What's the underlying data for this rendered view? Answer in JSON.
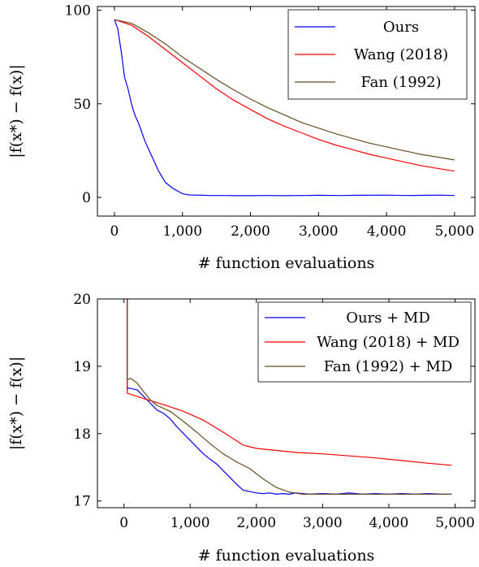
{
  "chart_data": [
    {
      "type": "line",
      "title": "",
      "xlabel": "# function evaluations",
      "ylabel": "|f(x*) − f(x)|",
      "xlim": [
        -250,
        5300
      ],
      "ylim": [
        -10,
        102
      ],
      "xticks": [
        0,
        1000,
        2000,
        3000,
        4000,
        5000
      ],
      "xtick_labels": [
        "0",
        "1,000",
        "2,000",
        "3,000",
        "4,000",
        "5,000"
      ],
      "yticks": [
        0,
        50,
        100
      ],
      "ytick_labels": [
        "0",
        "50",
        "100"
      ],
      "legend": "top-right",
      "series": [
        {
          "name": "Ours",
          "color": "#0000ff",
          "x": [
            0,
            50,
            100,
            150,
            200,
            250,
            300,
            350,
            400,
            450,
            500,
            550,
            600,
            650,
            700,
            750,
            800,
            850,
            900,
            950,
            1000,
            1050,
            1100,
            1200,
            1300,
            1400,
            1600,
            1800,
            2000,
            2200,
            2500,
            2800,
            3000,
            3300,
            3600,
            4000,
            4300,
            4600,
            4800,
            5000
          ],
          "y": [
            95,
            90,
            78,
            64,
            58,
            50,
            44,
            40,
            35,
            30,
            26,
            22,
            18,
            14,
            11,
            8,
            6.5,
            5,
            4,
            3,
            2,
            1.6,
            1.3,
            1.2,
            1.1,
            1.0,
            1.0,
            0.9,
            0.9,
            1.0,
            0.9,
            1.0,
            1.1,
            1.0,
            1.1,
            1.2,
            1.0,
            1.1,
            1.2,
            1.0
          ]
        },
        {
          "name": "Wang (2018)",
          "color": "#ff0000",
          "x": [
            0,
            250,
            500,
            750,
            1000,
            1250,
            1500,
            1750,
            2000,
            2250,
            2500,
            2750,
            3000,
            3250,
            3500,
            3750,
            4000,
            4250,
            4500,
            4750,
            5000
          ],
          "y": [
            95,
            92,
            86,
            79,
            72,
            65,
            58,
            52,
            47,
            42,
            38,
            34.5,
            31,
            28,
            25.5,
            23,
            21,
            19,
            17,
            15.5,
            14
          ]
        },
        {
          "name": "Fan (1992)",
          "color": "#6b4a22",
          "x": [
            0,
            250,
            500,
            750,
            1000,
            1250,
            1500,
            1750,
            2000,
            2250,
            2500,
            2750,
            3000,
            3250,
            3500,
            3750,
            4000,
            4250,
            4500,
            4750,
            5000
          ],
          "y": [
            95,
            93,
            88,
            82,
            75,
            69,
            63,
            57.5,
            52.5,
            48,
            44,
            40,
            37,
            34,
            31.5,
            29,
            27,
            25,
            23,
            21.5,
            20
          ]
        }
      ]
    },
    {
      "type": "line",
      "title": "",
      "xlabel": "# function evaluations",
      "ylabel": "|f(x*) − f(x)|",
      "xlim": [
        -400,
        5300
      ],
      "ylim": [
        16.9,
        20
      ],
      "xticks": [
        0,
        1000,
        2000,
        3000,
        4000,
        5000
      ],
      "xtick_labels": [
        "0",
        "1,000",
        "2,000",
        "3,000",
        "4,000",
        "5,000"
      ],
      "yticks": [
        17,
        18,
        19,
        20
      ],
      "ytick_labels": [
        "17",
        "18",
        "19",
        "20"
      ],
      "legend": "top-right",
      "series": [
        {
          "name": "Ours + MD",
          "color": "#0000ff",
          "x": [
            50,
            50,
            60,
            200,
            300,
            400,
            500,
            600,
            700,
            800,
            900,
            1000,
            1100,
            1200,
            1300,
            1400,
            1500,
            1600,
            1700,
            1800,
            1900,
            2000,
            2100,
            2200,
            2300,
            2400,
            2500,
            2600,
            2800,
            3000,
            3200,
            3400,
            3600,
            3800,
            4000,
            4200,
            4400,
            4600,
            4800,
            4950
          ],
          "y": [
            20,
            18.65,
            18.68,
            18.65,
            18.55,
            18.45,
            18.35,
            18.3,
            18.22,
            18.1,
            18.0,
            17.9,
            17.8,
            17.7,
            17.62,
            17.55,
            17.45,
            17.35,
            17.25,
            17.16,
            17.14,
            17.12,
            17.11,
            17.12,
            17.1,
            17.11,
            17.1,
            17.12,
            17.1,
            17.11,
            17.1,
            17.12,
            17.1,
            17.11,
            17.1,
            17.11,
            17.1,
            17.11,
            17.1,
            17.1
          ]
        },
        {
          "name": "Wang (2018) + MD",
          "color": "#ff0000",
          "x": [
            50,
            50,
            300,
            600,
            900,
            1200,
            1500,
            1800,
            2000,
            2300,
            2600,
            3000,
            3400,
            3800,
            4200,
            4600,
            4950
          ],
          "y": [
            20,
            18.6,
            18.52,
            18.43,
            18.33,
            18.2,
            18.02,
            17.83,
            17.78,
            17.75,
            17.72,
            17.7,
            17.67,
            17.64,
            17.6,
            17.56,
            17.53
          ]
        },
        {
          "name": "Fan (1992) + MD",
          "color": "#6b4a22",
          "x": [
            50,
            50,
            100,
            200,
            300,
            400,
            500,
            700,
            900,
            1100,
            1300,
            1500,
            1700,
            1900,
            2100,
            2300,
            2500,
            2700,
            2900,
            3200,
            3600,
            4000,
            4400,
            4800,
            4950
          ],
          "y": [
            20,
            18.8,
            18.82,
            18.75,
            18.62,
            18.5,
            18.42,
            18.33,
            18.18,
            18.02,
            17.85,
            17.7,
            17.58,
            17.48,
            17.33,
            17.2,
            17.13,
            17.1,
            17.1,
            17.1,
            17.1,
            17.1,
            17.1,
            17.1,
            17.1
          ]
        }
      ]
    }
  ]
}
